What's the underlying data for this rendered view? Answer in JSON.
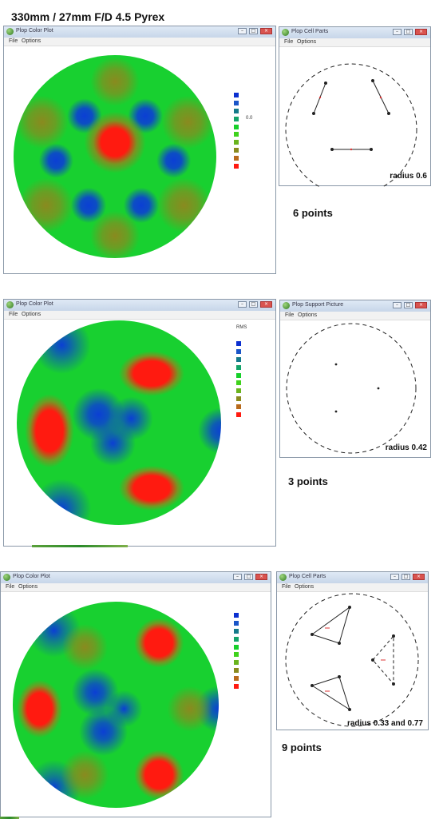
{
  "title": "330mm / 27mm F/D 4.5   Pyrex",
  "colors": {
    "blue": "#0b3fd4",
    "green": "#15d02a",
    "red": "#ff1a10",
    "olive": "#8a8a1f"
  },
  "panels": [
    {
      "plot_window": {
        "title": "Plop Color Plot",
        "menu": [
          "File",
          "Options"
        ]
      },
      "support_window": {
        "title": "Plop Cell Parts",
        "menu": [
          "File",
          "Options"
        ]
      },
      "legend": [
        {
          "label": "",
          "value": ""
        },
        {
          "label": "",
          "value": ""
        },
        {
          "label": "",
          "value": ""
        },
        {
          "label": "",
          "value": ""
        },
        {
          "label": "",
          "value": ""
        },
        {
          "label": "",
          "value": "0.0"
        },
        {
          "label": "",
          "value": ""
        },
        {
          "label": "",
          "value": ""
        },
        {
          "label": "",
          "value": ""
        },
        {
          "label": "",
          "value": ""
        },
        {
          "label": "",
          "value": ""
        },
        {
          "label": "",
          "value": ""
        }
      ],
      "radius": "radius 0.6",
      "points": "6 points"
    },
    {
      "plot_window": {
        "title": "Plop Color Plot",
        "menu": [
          "File",
          "Options"
        ]
      },
      "support_window": {
        "title": "Plop Support Picture",
        "menu": [
          "File",
          "Options"
        ]
      },
      "legend": [
        {
          "label": "RMS",
          "value": ""
        },
        {
          "label": "",
          "value": ""
        },
        {
          "label": "",
          "value": ""
        },
        {
          "label": "",
          "value": ""
        },
        {
          "label": "",
          "value": ""
        },
        {
          "label": "",
          "value": ""
        },
        {
          "label": "",
          "value": ""
        },
        {
          "label": "",
          "value": ""
        },
        {
          "label": "",
          "value": ""
        },
        {
          "label": "",
          "value": ""
        },
        {
          "label": "",
          "value": ""
        },
        {
          "label": "",
          "value": ""
        }
      ],
      "radius": "radius 0.42",
      "points": "3 points"
    },
    {
      "plot_window": {
        "title": "Plop Color Plot",
        "menu": [
          "File",
          "Options"
        ]
      },
      "support_window": {
        "title": "Plop Cell Parts",
        "menu": [
          "File",
          "Options"
        ]
      },
      "legend": [
        {
          "label": "",
          "value": ""
        },
        {
          "label": "",
          "value": ""
        },
        {
          "label": "",
          "value": ""
        },
        {
          "label": "",
          "value": ""
        },
        {
          "label": "",
          "value": ""
        },
        {
          "label": "",
          "value": ""
        },
        {
          "label": "",
          "value": ""
        },
        {
          "label": "",
          "value": ""
        },
        {
          "label": "",
          "value": ""
        },
        {
          "label": "",
          "value": ""
        },
        {
          "label": "",
          "value": ""
        },
        {
          "label": "",
          "value": ""
        }
      ],
      "radius": "radius 0.33 and 0.77",
      "points": "9 points"
    }
  ],
  "legend_colors": [
    "",
    "",
    "#0b2fd0",
    "#1a55c8",
    "#157a8a",
    "#14a36a",
    "#16d02a",
    "#3fd21c",
    "#6ab41e",
    "#8a8a1f",
    "#b86a1c",
    "#ff1a10"
  ]
}
